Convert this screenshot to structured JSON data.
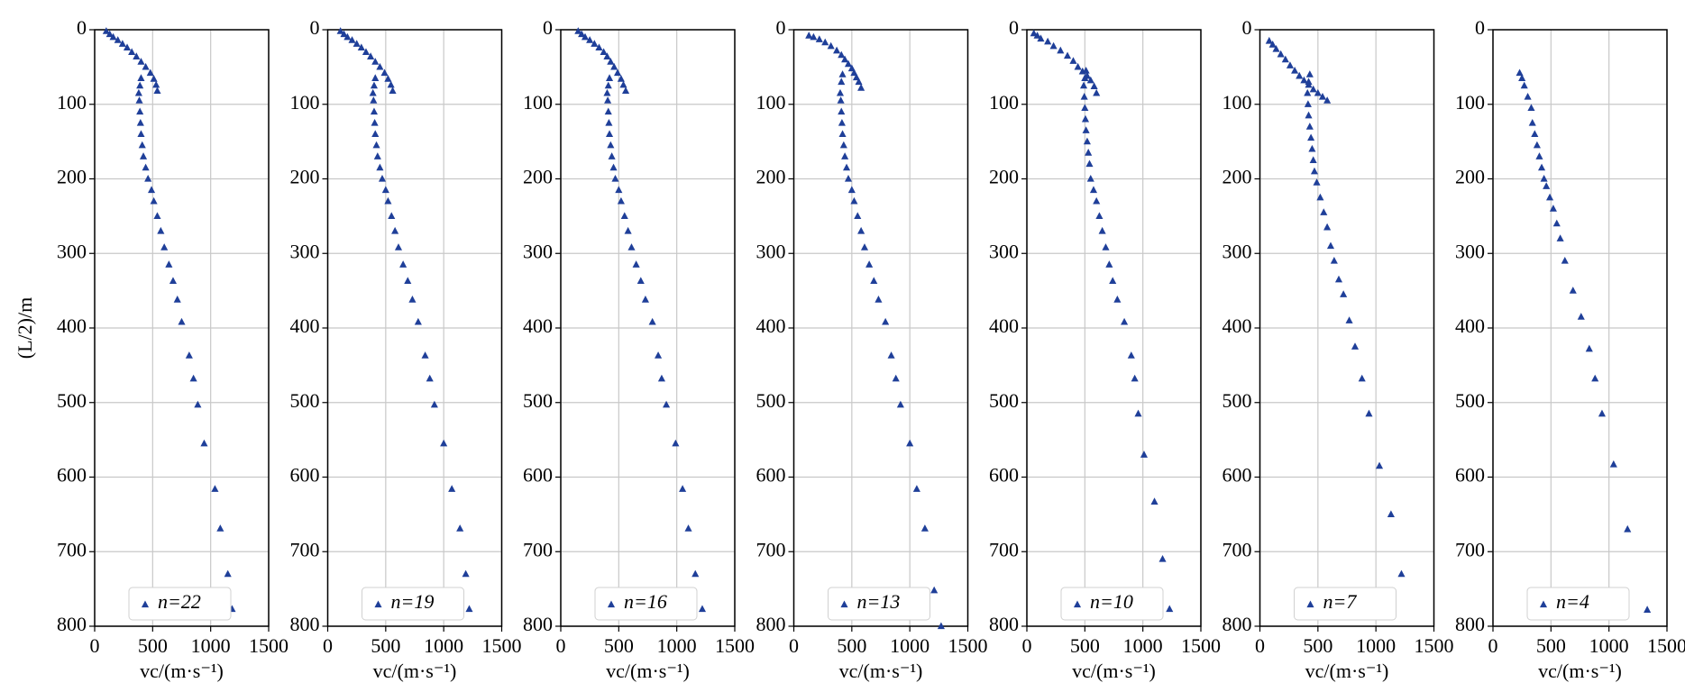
{
  "chart_data": [
    {
      "type": "scatter",
      "ylabel": "(L/2)/m",
      "xlabel": "vc/(m·s⁻¹)",
      "xlim": [
        0,
        1500
      ],
      "ylim": [
        0,
        800
      ],
      "y_inverted": true,
      "xticks": [
        0,
        500,
        1000,
        1500
      ],
      "yticks": [
        0,
        100,
        200,
        300,
        400,
        500,
        600,
        700,
        800
      ],
      "grid": true,
      "legend": "lower center",
      "series": [
        {
          "name": "n=22",
          "color": "#1f3f99",
          "x": [
            100,
            130,
            160,
            200,
            240,
            280,
            320,
            360,
            400,
            440,
            480,
            510,
            530,
            540,
            400,
            390,
            380,
            385,
            390,
            395,
            400,
            410,
            420,
            440,
            460,
            490,
            510,
            540,
            570,
            600,
            640,
            676,
            713,
            750,
            815,
            852,
            889,
            944,
            1037,
            1083,
            1148,
            1185
          ],
          "values": [
            2,
            6,
            10,
            14,
            19,
            24,
            30,
            36,
            43,
            50,
            58,
            66,
            74,
            82,
            65,
            75,
            85,
            95,
            110,
            125,
            140,
            155,
            170,
            185,
            200,
            215,
            230,
            250,
            270,
            292,
            315,
            337,
            362,
            392,
            437,
            468,
            503,
            555,
            616,
            669,
            730,
            777
          ]
        }
      ]
    },
    {
      "type": "scatter",
      "xlabel": "vc/(m·s⁻¹)",
      "xlim": [
        0,
        1500
      ],
      "ylim": [
        0,
        800
      ],
      "y_inverted": true,
      "xticks": [
        0,
        500,
        1000,
        1500
      ],
      "yticks": [
        0,
        100,
        200,
        300,
        400,
        500,
        600,
        700,
        800
      ],
      "grid": true,
      "legend": "lower center",
      "series": [
        {
          "name": "n=19",
          "color": "#1f3f99",
          "x": [
            110,
            140,
            170,
            210,
            250,
            290,
            330,
            370,
            410,
            450,
            490,
            520,
            545,
            560,
            410,
            400,
            390,
            395,
            400,
            405,
            410,
            420,
            430,
            450,
            470,
            500,
            520,
            550,
            580,
            610,
            650,
            690,
            730,
            780,
            840,
            880,
            920,
            1000,
            1070,
            1140,
            1190,
            1220
          ],
          "values": [
            2,
            6,
            10,
            14,
            19,
            24,
            30,
            36,
            43,
            50,
            58,
            66,
            74,
            82,
            65,
            75,
            85,
            95,
            110,
            125,
            140,
            155,
            170,
            185,
            200,
            215,
            230,
            250,
            270,
            292,
            315,
            337,
            362,
            392,
            437,
            468,
            503,
            555,
            616,
            669,
            730,
            777
          ]
        }
      ]
    },
    {
      "type": "scatter",
      "xlabel": "vc/(m·s⁻¹)",
      "xlim": [
        0,
        1500
      ],
      "ylim": [
        0,
        800
      ],
      "y_inverted": true,
      "xticks": [
        0,
        500,
        1000,
        1500
      ],
      "yticks": [
        0,
        100,
        200,
        300,
        400,
        500,
        600,
        700,
        800
      ],
      "grid": true,
      "legend": "lower center",
      "series": [
        {
          "name": "n=16",
          "color": "#1f3f99",
          "x": [
            150,
            180,
            210,
            250,
            290,
            330,
            370,
            400,
            430,
            460,
            490,
            520,
            540,
            560,
            420,
            410,
            400,
            405,
            410,
            415,
            420,
            430,
            440,
            455,
            470,
            500,
            520,
            550,
            580,
            610,
            650,
            690,
            730,
            790,
            840,
            870,
            910,
            990,
            1050,
            1100,
            1160,
            1220
          ],
          "values": [
            2,
            6,
            10,
            14,
            19,
            24,
            30,
            36,
            43,
            50,
            58,
            66,
            74,
            82,
            65,
            75,
            85,
            95,
            110,
            125,
            140,
            155,
            170,
            185,
            200,
            215,
            230,
            250,
            270,
            292,
            315,
            337,
            362,
            392,
            437,
            468,
            503,
            555,
            616,
            669,
            730,
            777
          ]
        }
      ]
    },
    {
      "type": "scatter",
      "xlabel": "vc/(m·s⁻¹)",
      "xlim": [
        0,
        1500
      ],
      "ylim": [
        0,
        800
      ],
      "y_inverted": true,
      "xticks": [
        0,
        500,
        1000,
        1500
      ],
      "yticks": [
        0,
        100,
        200,
        300,
        400,
        500,
        600,
        700,
        800
      ],
      "grid": true,
      "legend": "lower center",
      "series": [
        {
          "name": "n=13",
          "color": "#1f3f99",
          "x": [
            130,
            170,
            220,
            270,
            320,
            370,
            410,
            440,
            470,
            500,
            520,
            540,
            560,
            580,
            420,
            410,
            400,
            405,
            410,
            415,
            420,
            430,
            440,
            455,
            470,
            500,
            520,
            550,
            580,
            610,
            650,
            690,
            730,
            790,
            840,
            880,
            920,
            1000,
            1060,
            1130,
            1210,
            1270
          ],
          "values": [
            8,
            10,
            13,
            17,
            22,
            28,
            34,
            40,
            46,
            52,
            58,
            64,
            70,
            78,
            60,
            70,
            85,
            95,
            110,
            125,
            140,
            155,
            170,
            185,
            200,
            215,
            230,
            250,
            270,
            292,
            315,
            337,
            362,
            392,
            437,
            468,
            503,
            555,
            616,
            669,
            752,
            800
          ]
        }
      ]
    },
    {
      "type": "scatter",
      "xlabel": "vc/(m·s⁻¹)",
      "xlim": [
        0,
        1500
      ],
      "ylim": [
        0,
        800
      ],
      "y_inverted": true,
      "xticks": [
        0,
        500,
        1000,
        1500
      ],
      "yticks": [
        0,
        100,
        200,
        300,
        400,
        500,
        600,
        700,
        800
      ],
      "grid": true,
      "legend": "lower center",
      "series": [
        {
          "name": "n=10",
          "color": "#1f3f99",
          "x": [
            60,
            90,
            120,
            180,
            230,
            290,
            350,
            400,
            440,
            480,
            520,
            550,
            580,
            600,
            510,
            500,
            490,
            495,
            500,
            505,
            510,
            520,
            530,
            540,
            550,
            575,
            600,
            625,
            650,
            680,
            710,
            740,
            780,
            840,
            900,
            930,
            960,
            1010,
            1100,
            1170,
            1230
          ],
          "values": [
            5,
            8,
            12,
            16,
            22,
            28,
            35,
            42,
            50,
            56,
            62,
            68,
            76,
            85,
            55,
            65,
            75,
            90,
            105,
            120,
            135,
            150,
            165,
            180,
            200,
            215,
            230,
            250,
            270,
            292,
            315,
            337,
            362,
            392,
            437,
            468,
            515,
            570,
            633,
            710,
            777
          ]
        }
      ]
    },
    {
      "type": "scatter",
      "xlabel": "vc/(m·s⁻¹)",
      "xlim": [
        0,
        1500
      ],
      "ylim": [
        0,
        800
      ],
      "y_inverted": true,
      "xticks": [
        0,
        500,
        1000,
        1500
      ],
      "yticks": [
        0,
        100,
        200,
        300,
        400,
        500,
        600,
        700,
        800
      ],
      "grid": true,
      "legend": "lower center",
      "series": [
        {
          "name": "n=7",
          "color": "#1f3f99",
          "x": [
            80,
            110,
            140,
            180,
            220,
            260,
            300,
            340,
            380,
            420,
            460,
            500,
            540,
            580,
            430,
            420,
            410,
            415,
            420,
            430,
            440,
            450,
            460,
            470,
            490,
            520,
            550,
            580,
            610,
            640,
            680,
            720,
            770,
            820,
            880,
            940,
            1030,
            1130,
            1220
          ],
          "values": [
            15,
            20,
            26,
            33,
            40,
            48,
            55,
            62,
            68,
            74,
            80,
            85,
            90,
            95,
            60,
            70,
            85,
            100,
            115,
            130,
            145,
            160,
            175,
            190,
            205,
            225,
            245,
            265,
            290,
            310,
            335,
            355,
            390,
            425,
            468,
            515,
            585,
            650,
            730
          ]
        }
      ]
    },
    {
      "type": "scatter",
      "xlabel": "vc/(m·s⁻¹)",
      "xlim": [
        0,
        1500
      ],
      "ylim": [
        0,
        800
      ],
      "y_inverted": true,
      "xticks": [
        0,
        500,
        1000,
        1500
      ],
      "yticks": [
        0,
        100,
        200,
        300,
        400,
        500,
        600,
        700,
        800
      ],
      "grid": true,
      "legend": "lower center",
      "series": [
        {
          "name": "n=4",
          "color": "#1f3f99",
          "x": [
            230,
            250,
            270,
            300,
            330,
            340,
            360,
            380,
            400,
            420,
            440,
            460,
            490,
            520,
            550,
            580,
            620,
            690,
            760,
            830,
            880,
            940,
            1040,
            1160,
            1330
          ],
          "values": [
            58,
            65,
            75,
            90,
            105,
            125,
            140,
            155,
            170,
            185,
            200,
            210,
            225,
            240,
            260,
            280,
            310,
            350,
            385,
            428,
            468,
            515,
            583,
            670,
            778
          ]
        }
      ]
    }
  ]
}
